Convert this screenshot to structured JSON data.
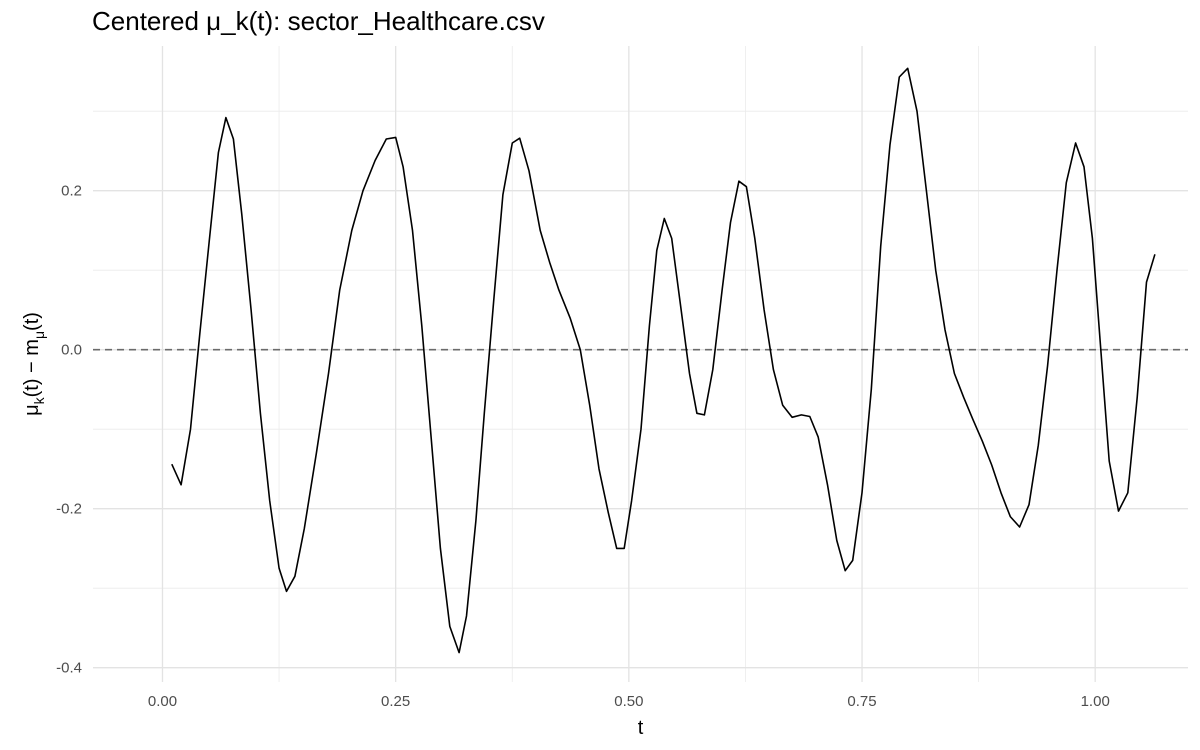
{
  "chart_data": {
    "type": "line",
    "title": "Centered μ_k(t): sector_Healthcare.csv",
    "xlabel": "t",
    "ylabel": {
      "parts": [
        "μ",
        "k",
        "(t) − m",
        "μ",
        "(t)"
      ]
    },
    "xlim": [
      -0.0745,
      1.0995
    ],
    "ylim": [
      -0.418,
      0.382
    ],
    "x_ticks": [
      0.0,
      0.25,
      0.5,
      0.75,
      1.0
    ],
    "x_tick_labels": [
      "0.00",
      "0.25",
      "0.50",
      "0.75",
      "1.00"
    ],
    "y_ticks": [
      -0.4,
      -0.2,
      0.0,
      0.2
    ],
    "y_tick_labels": [
      "-0.4",
      "-0.2",
      "0.0",
      "0.2"
    ],
    "reference_line": {
      "y": 0.0,
      "style": "dashed"
    },
    "grid": true,
    "series": [
      {
        "color": "#000000",
        "points": [
          [
            0.01,
            -0.144
          ],
          [
            0.02,
            -0.17
          ],
          [
            0.03,
            -0.1
          ],
          [
            0.04,
            0.02
          ],
          [
            0.05,
            0.135
          ],
          [
            0.06,
            0.248
          ],
          [
            0.068,
            0.292
          ],
          [
            0.076,
            0.265
          ],
          [
            0.085,
            0.17
          ],
          [
            0.095,
            0.05
          ],
          [
            0.105,
            -0.08
          ],
          [
            0.115,
            -0.19
          ],
          [
            0.125,
            -0.275
          ],
          [
            0.133,
            -0.304
          ],
          [
            0.142,
            -0.285
          ],
          [
            0.152,
            -0.225
          ],
          [
            0.165,
            -0.13
          ],
          [
            0.178,
            -0.03
          ],
          [
            0.19,
            0.075
          ],
          [
            0.203,
            0.15
          ],
          [
            0.215,
            0.2
          ],
          [
            0.228,
            0.238
          ],
          [
            0.24,
            0.265
          ],
          [
            0.25,
            0.267
          ],
          [
            0.258,
            0.23
          ],
          [
            0.268,
            0.15
          ],
          [
            0.278,
            0.03
          ],
          [
            0.288,
            -0.11
          ],
          [
            0.298,
            -0.25
          ],
          [
            0.308,
            -0.348
          ],
          [
            0.318,
            -0.381
          ],
          [
            0.326,
            -0.335
          ],
          [
            0.336,
            -0.215
          ],
          [
            0.345,
            -0.08
          ],
          [
            0.355,
            0.06
          ],
          [
            0.365,
            0.195
          ],
          [
            0.375,
            0.26
          ],
          [
            0.383,
            0.266
          ],
          [
            0.393,
            0.225
          ],
          [
            0.405,
            0.15
          ],
          [
            0.415,
            0.11
          ],
          [
            0.425,
            0.075
          ],
          [
            0.437,
            0.04
          ],
          [
            0.448,
            0.0
          ],
          [
            0.458,
            -0.07
          ],
          [
            0.468,
            -0.15
          ],
          [
            0.478,
            -0.205
          ],
          [
            0.487,
            -0.25
          ],
          [
            0.495,
            -0.25
          ],
          [
            0.503,
            -0.19
          ],
          [
            0.513,
            -0.1
          ],
          [
            0.522,
            0.03
          ],
          [
            0.53,
            0.125
          ],
          [
            0.538,
            0.165
          ],
          [
            0.546,
            0.14
          ],
          [
            0.555,
            0.06
          ],
          [
            0.565,
            -0.03
          ],
          [
            0.573,
            -0.08
          ],
          [
            0.581,
            -0.082
          ],
          [
            0.59,
            -0.025
          ],
          [
            0.6,
            0.075
          ],
          [
            0.609,
            0.16
          ],
          [
            0.618,
            0.212
          ],
          [
            0.626,
            0.205
          ],
          [
            0.635,
            0.14
          ],
          [
            0.645,
            0.05
          ],
          [
            0.655,
            -0.025
          ],
          [
            0.665,
            -0.07
          ],
          [
            0.675,
            -0.085
          ],
          [
            0.685,
            -0.082
          ],
          [
            0.694,
            -0.084
          ],
          [
            0.703,
            -0.11
          ],
          [
            0.713,
            -0.17
          ],
          [
            0.723,
            -0.24
          ],
          [
            0.732,
            -0.278
          ],
          [
            0.74,
            -0.265
          ],
          [
            0.75,
            -0.18
          ],
          [
            0.76,
            -0.05
          ],
          [
            0.77,
            0.13
          ],
          [
            0.78,
            0.258
          ],
          [
            0.79,
            0.343
          ],
          [
            0.799,
            0.354
          ],
          [
            0.809,
            0.3
          ],
          [
            0.819,
            0.2
          ],
          [
            0.829,
            0.1
          ],
          [
            0.839,
            0.025
          ],
          [
            0.849,
            -0.03
          ],
          [
            0.859,
            -0.06
          ],
          [
            0.869,
            -0.088
          ],
          [
            0.879,
            -0.115
          ],
          [
            0.889,
            -0.145
          ],
          [
            0.899,
            -0.18
          ],
          [
            0.909,
            -0.21
          ],
          [
            0.919,
            -0.223
          ],
          [
            0.929,
            -0.195
          ],
          [
            0.939,
            -0.12
          ],
          [
            0.949,
            -0.02
          ],
          [
            0.959,
            0.1
          ],
          [
            0.969,
            0.21
          ],
          [
            0.979,
            0.26
          ],
          [
            0.988,
            0.23
          ],
          [
            0.997,
            0.14
          ],
          [
            1.006,
            0.0
          ],
          [
            1.015,
            -0.14
          ],
          [
            1.025,
            -0.203
          ],
          [
            1.035,
            -0.18
          ],
          [
            1.045,
            -0.06
          ],
          [
            1.055,
            0.085
          ],
          [
            1.064,
            0.12
          ]
        ]
      }
    ]
  }
}
